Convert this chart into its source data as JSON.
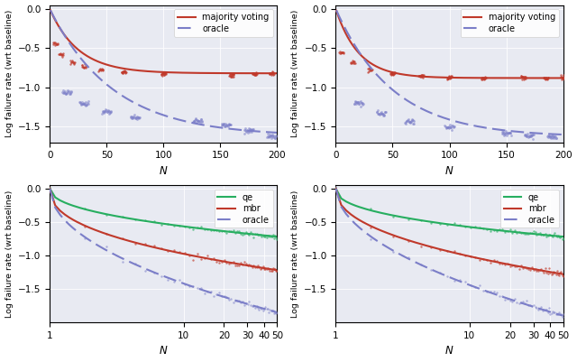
{
  "bg_color": "#e8eaf2",
  "fig_bg": "#ffffff",
  "top_left": {
    "xlabel": "N",
    "ylabel": "Log failure rate (wrt baseline)",
    "xlim": [
      0,
      200
    ],
    "ylim": [
      -1.7,
      0.05
    ],
    "yticks": [
      0.0,
      -0.5,
      -1.0,
      -1.5
    ],
    "xticks": [
      0,
      50,
      100,
      150,
      200
    ],
    "mv_asymptote": -0.82,
    "mv_rate": 8.0,
    "oracle_asymptote": -1.62,
    "oracle_rate": 0.018,
    "mv_steps_x": [
      5,
      10,
      20,
      30,
      45,
      65,
      100,
      160,
      180,
      195
    ],
    "mv_steps_y": [
      -0.45,
      -0.58,
      -0.68,
      -0.73,
      -0.77,
      -0.8,
      -0.83,
      -0.85,
      -0.83,
      -0.82
    ],
    "oracle_steps_x": [
      15,
      30,
      50,
      75,
      130,
      155,
      175,
      195
    ],
    "oracle_steps_y": [
      -1.06,
      -1.2,
      -1.31,
      -1.38,
      -1.42,
      -1.47,
      -1.55,
      -1.62
    ]
  },
  "top_right": {
    "xlabel": "N",
    "ylabel": "Log failure rate (wrt baseline)",
    "xlim": [
      0,
      200
    ],
    "ylim": [
      -1.7,
      0.05
    ],
    "yticks": [
      0.0,
      -0.5,
      -1.0,
      -1.5
    ],
    "xticks": [
      0,
      50,
      100,
      150,
      200
    ],
    "mv_asymptote": -0.88,
    "mv_rate": 10.0,
    "oracle_asymptote": -1.63,
    "oracle_rate": 0.02,
    "mv_steps_x": [
      5,
      15,
      30,
      50,
      75,
      100,
      130,
      165,
      185,
      200
    ],
    "mv_steps_y": [
      -0.55,
      -0.68,
      -0.77,
      -0.82,
      -0.85,
      -0.87,
      -0.88,
      -0.87,
      -0.88,
      -0.87
    ],
    "oracle_steps_x": [
      20,
      40,
      65,
      100,
      150,
      170,
      190
    ],
    "oracle_steps_y": [
      -1.2,
      -1.33,
      -1.43,
      -1.5,
      -1.58,
      -1.61,
      -1.62
    ]
  },
  "bottom_left": {
    "xlabel": "N",
    "ylabel": "Log failure rate (wrt baseline)",
    "xlim": [
      1,
      50
    ],
    "ylim": [
      -2.0,
      0.05
    ],
    "yticks": [
      0.0,
      -0.5,
      -1.0,
      -1.5
    ],
    "xticks": [
      1,
      10,
      20,
      30,
      40,
      50
    ],
    "qe_a": -0.72,
    "qe_b": 0.45,
    "mbr_a": -1.22,
    "mbr_b": 0.42,
    "oracle_a": -1.85,
    "oracle_b": 0.5
  },
  "bottom_right": {
    "xlabel": "N",
    "ylabel": "Log failure rate (wrt baseline)",
    "xlim": [
      1,
      50
    ],
    "ylim": [
      -2.0,
      0.05
    ],
    "yticks": [
      0.0,
      -0.5,
      -1.0,
      -1.5
    ],
    "xticks": [
      1,
      10,
      20,
      30,
      40,
      50
    ],
    "qe_a": -0.72,
    "qe_b": 0.42,
    "mbr_a": -1.28,
    "mbr_b": 0.44,
    "oracle_a": -1.9,
    "oracle_b": 0.52
  },
  "mv_color": "#c0392b",
  "oracle_color": "#7b7ec8",
  "qe_color": "#27ae60",
  "mbr_color": "#c0392b"
}
